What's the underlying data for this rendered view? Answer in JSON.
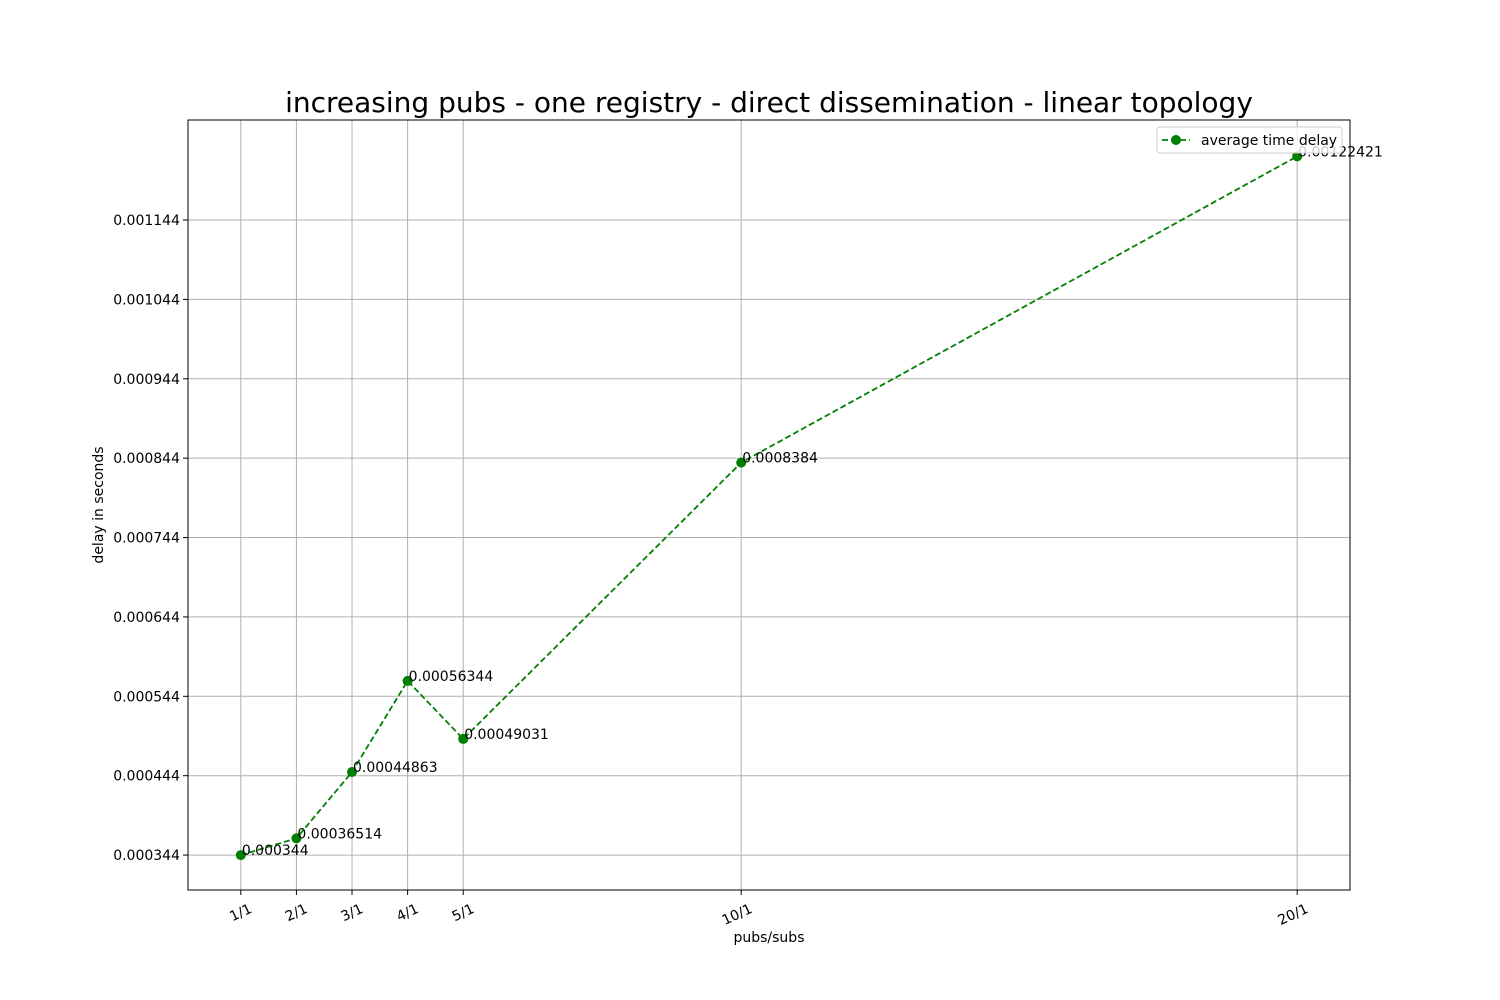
{
  "chart_data": {
    "type": "line",
    "title": "increasing pubs - one registry - direct dissemination - linear topology",
    "xlabel": "pubs/subs",
    "ylabel": "delay in seconds",
    "x_positions": [
      1,
      2,
      3,
      4,
      5,
      10,
      20
    ],
    "categories": [
      "1/1",
      "2/1",
      "3/1",
      "4/1",
      "5/1",
      "10/1",
      "20/1"
    ],
    "series": [
      {
        "name": "average time delay",
        "color": "#008000",
        "line_style": "dashed",
        "marker": "circle",
        "values": [
          0.000344,
          0.00036514,
          0.00044863,
          0.00056344,
          0.00049031,
          0.0008384,
          0.00122421
        ],
        "data_labels": [
          "0.000344",
          "0.00036514",
          "0.00044863",
          "0.00056344",
          "0.00049031",
          "0.0008384",
          "0.00122421"
        ]
      }
    ],
    "yticks": [
      0.000344,
      0.000444,
      0.000544,
      0.000644,
      0.000744,
      0.000844,
      0.000944,
      0.001044,
      0.001144
    ],
    "ytick_labels": [
      "0.000344",
      "0.000444",
      "0.000544",
      "0.000644",
      "0.000744",
      "0.000844",
      "0.000944",
      "0.001044",
      "0.001144"
    ],
    "xlim": [
      0.05,
      20.95
    ],
    "ylim": [
      0.0003,
      0.00127
    ],
    "grid": true,
    "legend_position": "top-right"
  }
}
